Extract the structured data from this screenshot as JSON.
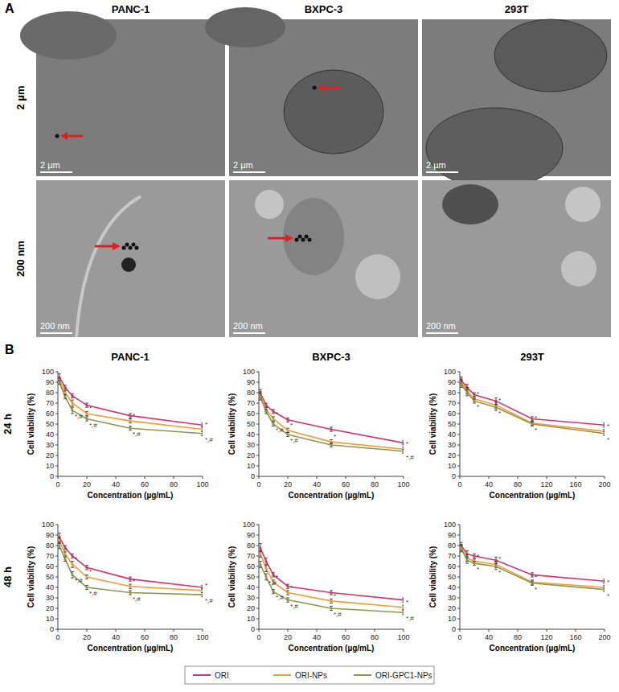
{
  "panels": [
    "A",
    "B"
  ],
  "images": {
    "columns": [
      "PANC-1",
      "BXPC-3",
      "293T"
    ],
    "row_labels": [
      "2 µm",
      "200 nm"
    ],
    "scale_bars": [
      "2 µm",
      "200 nm"
    ]
  },
  "row_labels": [
    "24 h",
    "48 h"
  ],
  "chart_data": [
    {
      "type": "line",
      "title": "PANC-1",
      "x_label": "Concentration (µg/mL)",
      "y_label": "Cell viability (%)",
      "x": [
        1,
        5,
        10,
        20,
        50,
        100
      ],
      "xlim": [
        0,
        100
      ],
      "xticks": [
        0,
        20,
        40,
        60,
        80,
        100
      ],
      "ylim": [
        0,
        100
      ],
      "yticks": [
        0,
        10,
        20,
        30,
        40,
        50,
        60,
        70,
        80,
        90,
        100
      ],
      "series": [
        {
          "name": "ORI",
          "color": "#d6336c",
          "values": [
            95,
            85,
            77,
            68,
            58,
            49
          ],
          "errors": [
            3,
            2,
            2,
            2,
            2,
            2
          ],
          "significance": [
            null,
            null,
            null,
            null,
            null,
            null
          ]
        },
        {
          "name": "ORI-NPs",
          "color": "#f39c33",
          "values": [
            92,
            80,
            70,
            60,
            53,
            45
          ],
          "errors": [
            2,
            2,
            3,
            2,
            2,
            2
          ],
          "significance": [
            null,
            null,
            null,
            "*",
            "*",
            "*"
          ]
        },
        {
          "name": "ORI-GPC1-NPs",
          "color": "#8a9a4a",
          "values": [
            90,
            76,
            63,
            55,
            46,
            41
          ],
          "errors": [
            2,
            2,
            3,
            2,
            2,
            2
          ],
          "significance": [
            null,
            null,
            "*,#",
            "*,#",
            "*,#",
            "*,#"
          ]
        }
      ]
    },
    {
      "type": "line",
      "title": "BXPC-3",
      "x_label": "Concentration (µg/mL)",
      "y_label": "Cell viability (%)",
      "x": [
        1,
        5,
        10,
        20,
        50,
        100
      ],
      "xlim": [
        0,
        100
      ],
      "xticks": [
        0,
        20,
        40,
        60,
        80,
        100
      ],
      "ylim": [
        0,
        100
      ],
      "yticks": [
        0,
        10,
        20,
        30,
        40,
        50,
        60,
        70,
        80,
        90,
        100
      ],
      "series": [
        {
          "name": "ORI",
          "color": "#d6336c",
          "values": [
            80,
            68,
            62,
            54,
            45,
            32
          ],
          "errors": [
            3,
            2,
            2,
            2,
            2,
            2
          ],
          "significance": [
            null,
            null,
            null,
            null,
            null,
            null
          ]
        },
        {
          "name": "ORI-NPs",
          "color": "#f39c33",
          "values": [
            78,
            64,
            55,
            44,
            33,
            26
          ],
          "errors": [
            3,
            2,
            2,
            2,
            2,
            2
          ],
          "significance": [
            null,
            null,
            "*",
            "*",
            "*",
            "*"
          ]
        },
        {
          "name": "ORI-GPC1-NPs",
          "color": "#8a9a4a",
          "values": [
            76,
            62,
            50,
            40,
            30,
            24
          ],
          "errors": [
            3,
            2,
            2,
            2,
            2,
            2
          ],
          "significance": [
            null,
            null,
            "*,#",
            "*,#",
            null,
            "*,#"
          ]
        }
      ]
    },
    {
      "type": "line",
      "title": "293T",
      "x_label": "Concentration (µg/mL)",
      "y_label": "Cell viability (%)",
      "x": [
        2,
        10,
        20,
        50,
        100,
        200
      ],
      "xlim": [
        0,
        200
      ],
      "xticks": [
        0,
        40,
        80,
        120,
        160,
        200
      ],
      "ylim": [
        0,
        100
      ],
      "yticks": [
        0,
        10,
        20,
        30,
        40,
        50,
        60,
        70,
        80,
        90,
        100
      ],
      "series": [
        {
          "name": "ORI",
          "color": "#d6336c",
          "values": [
            92,
            85,
            78,
            72,
            55,
            49
          ],
          "errors": [
            3,
            3,
            2,
            3,
            2,
            2
          ],
          "significance": [
            null,
            null,
            null,
            null,
            null,
            null
          ]
        },
        {
          "name": "ORI-NPs",
          "color": "#f39c33",
          "values": [
            90,
            82,
            74,
            68,
            51,
            43
          ],
          "errors": [
            3,
            3,
            2,
            3,
            2,
            2
          ],
          "significance": [
            null,
            null,
            "*",
            "*",
            "*",
            "*"
          ]
        },
        {
          "name": "ORI-GPC1-NPs",
          "color": "#8a9a4a",
          "values": [
            88,
            80,
            72,
            66,
            50,
            41
          ],
          "errors": [
            3,
            3,
            2,
            3,
            2,
            2
          ],
          "significance": [
            null,
            null,
            "*",
            "*",
            "*",
            "*"
          ]
        }
      ]
    },
    {
      "type": "line",
      "x_label": "Concentration (µg/mL)",
      "y_label": "Cell viability (%)",
      "x": [
        1,
        5,
        10,
        20,
        50,
        100
      ],
      "xlim": [
        0,
        100
      ],
      "xticks": [
        0,
        20,
        40,
        60,
        80,
        100
      ],
      "ylim": [
        0,
        100
      ],
      "yticks": [
        0,
        10,
        20,
        30,
        40,
        50,
        60,
        70,
        80,
        90,
        100
      ],
      "series": [
        {
          "name": "ORI",
          "color": "#d6336c",
          "values": [
            88,
            78,
            70,
            59,
            48,
            40
          ],
          "errors": [
            4,
            2,
            2,
            2,
            2,
            2
          ],
          "significance": [
            null,
            null,
            null,
            null,
            null,
            null
          ]
        },
        {
          "name": "ORI-NPs",
          "color": "#f39c33",
          "values": [
            85,
            72,
            62,
            50,
            41,
            37
          ],
          "errors": [
            3,
            2,
            3,
            2,
            2,
            2
          ],
          "significance": [
            null,
            null,
            "*",
            "*",
            "*",
            "*"
          ]
        },
        {
          "name": "ORI-GPC1-NPs",
          "color": "#8a9a4a",
          "values": [
            80,
            67,
            52,
            40,
            35,
            33
          ],
          "errors": [
            3,
            2,
            3,
            2,
            2,
            2
          ],
          "significance": [
            null,
            null,
            "*,#",
            "*,#",
            "*,#",
            "*,#"
          ]
        }
      ]
    },
    {
      "type": "line",
      "x_label": "Concentration (µg/mL)",
      "y_label": "Cell viability (%)",
      "x": [
        1,
        5,
        10,
        20,
        50,
        100
      ],
      "xlim": [
        0,
        100
      ],
      "xticks": [
        0,
        20,
        40,
        60,
        80,
        100
      ],
      "ylim": [
        0,
        100
      ],
      "yticks": [
        0,
        10,
        20,
        30,
        40,
        50,
        60,
        70,
        80,
        90,
        100
      ],
      "series": [
        {
          "name": "ORI",
          "color": "#d6336c",
          "values": [
            78,
            65,
            52,
            41,
            35,
            28
          ],
          "errors": [
            4,
            3,
            2,
            2,
            2,
            2
          ],
          "significance": [
            null,
            null,
            null,
            null,
            null,
            null
          ]
        },
        {
          "name": "ORI-NPs",
          "color": "#f39c33",
          "values": [
            72,
            58,
            45,
            35,
            27,
            21
          ],
          "errors": [
            3,
            3,
            2,
            2,
            2,
            2
          ],
          "significance": [
            null,
            null,
            "*",
            "*",
            "*",
            "*"
          ]
        },
        {
          "name": "ORI-GPC1-NPs",
          "color": "#8a9a4a",
          "values": [
            62,
            50,
            36,
            28,
            20,
            16
          ],
          "errors": [
            3,
            3,
            2,
            2,
            2,
            2
          ],
          "significance": [
            null,
            "*,#",
            "*,#",
            "*,#",
            "*,#",
            "*,#"
          ]
        }
      ]
    },
    {
      "type": "line",
      "x_label": "Concentration (µg/mL)",
      "y_label": "Cell viability (%)",
      "x": [
        2,
        10,
        20,
        50,
        100,
        200
      ],
      "xlim": [
        0,
        200
      ],
      "xticks": [
        0,
        40,
        80,
        120,
        160,
        200
      ],
      "ylim": [
        0,
        100
      ],
      "yticks": [
        0,
        10,
        20,
        30,
        40,
        50,
        60,
        70,
        80,
        90,
        100
      ],
      "series": [
        {
          "name": "ORI",
          "color": "#d6336c",
          "values": [
            80,
            72,
            70,
            66,
            52,
            46
          ],
          "errors": [
            3,
            3,
            2,
            3,
            2,
            2
          ],
          "significance": [
            null,
            null,
            null,
            null,
            null,
            null
          ]
        },
        {
          "name": "ORI-NPs",
          "color": "#f39c33",
          "values": [
            78,
            68,
            65,
            62,
            45,
            40
          ],
          "errors": [
            3,
            3,
            2,
            3,
            2,
            2
          ],
          "significance": [
            null,
            null,
            "*",
            "*",
            "*",
            "*"
          ]
        },
        {
          "name": "ORI-GPC1-NPs",
          "color": "#8a9a4a",
          "values": [
            77,
            66,
            63,
            60,
            44,
            38
          ],
          "errors": [
            3,
            3,
            2,
            3,
            2,
            2
          ],
          "significance": [
            null,
            null,
            "*",
            "*",
            "*",
            "*"
          ]
        }
      ]
    }
  ]
}
